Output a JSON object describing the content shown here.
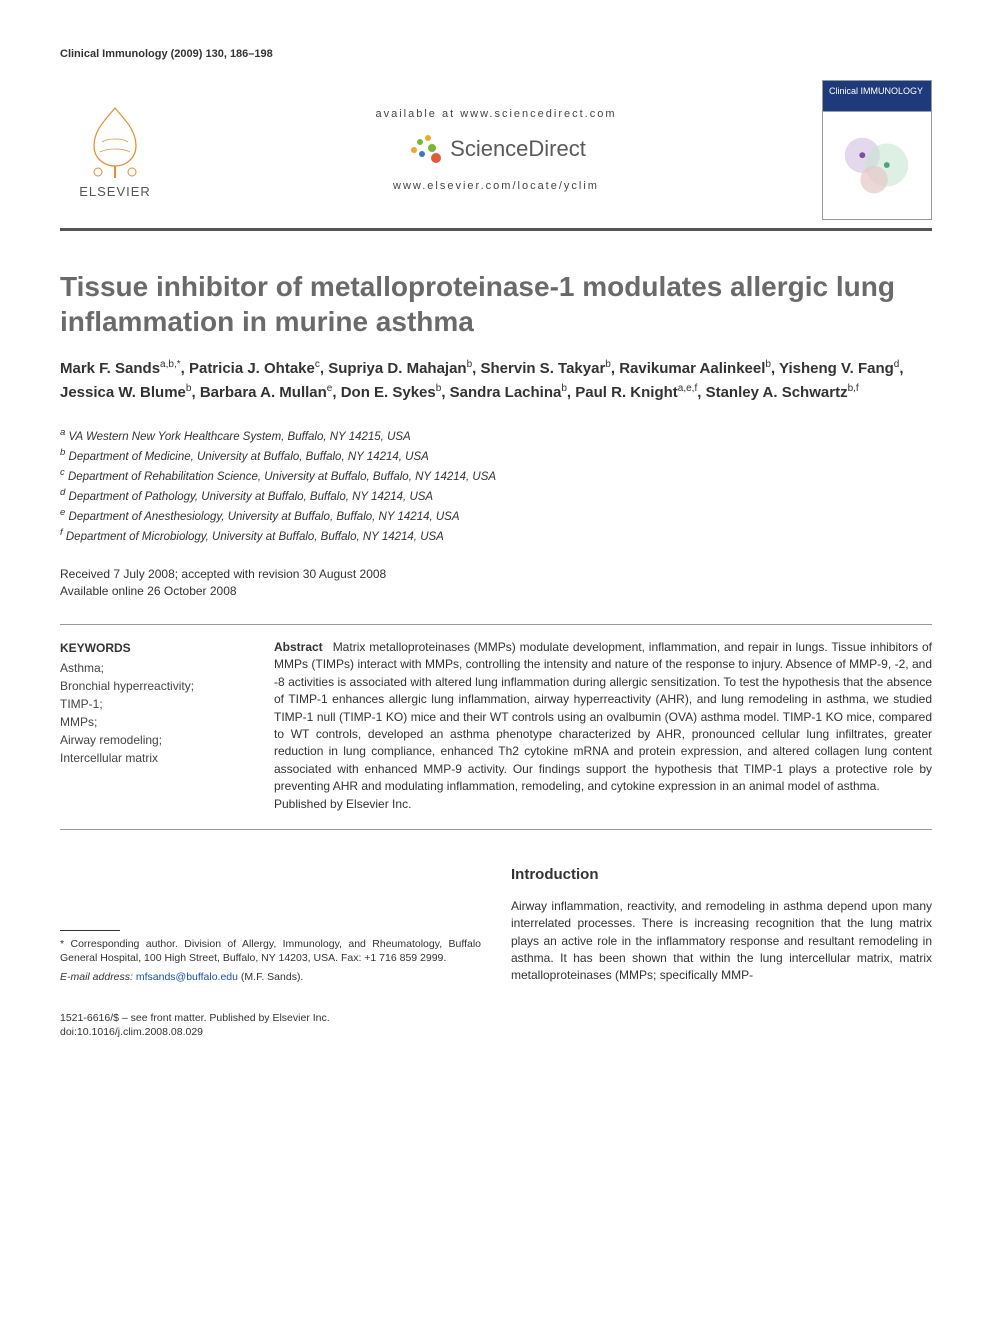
{
  "running_header": "Clinical Immunology (2009) 130, 186–198",
  "masthead": {
    "publisher_name": "ELSEVIER",
    "available_line": "available at www.sciencedirect.com",
    "sd_name": "ScienceDirect",
    "locate_line": "www.elsevier.com/locate/yclim",
    "cover_journal_title": "Clinical IMMUNOLOGY",
    "sd_mark_colors": [
      "#f5a623",
      "#7ab833",
      "#3b78c4",
      "#e25b3a"
    ]
  },
  "article": {
    "title": "Tissue inhibitor of metalloproteinase-1 modulates allergic lung inflammation in murine asthma",
    "title_color": "#6a6a6a",
    "title_fontsize": 28,
    "authors": [
      {
        "name": "Mark F. Sands",
        "marks": "a,b,*"
      },
      {
        "name": "Patricia J. Ohtake",
        "marks": "c"
      },
      {
        "name": "Supriya D. Mahajan",
        "marks": "b"
      },
      {
        "name": "Shervin S. Takyar",
        "marks": "b"
      },
      {
        "name": "Ravikumar Aalinkeel",
        "marks": "b"
      },
      {
        "name": "Yisheng V. Fang",
        "marks": "d"
      },
      {
        "name": "Jessica W. Blume",
        "marks": "b"
      },
      {
        "name": "Barbara A. Mullan",
        "marks": "e"
      },
      {
        "name": "Don E. Sykes",
        "marks": "b"
      },
      {
        "name": "Sandra Lachina",
        "marks": "b"
      },
      {
        "name": "Paul R. Knight",
        "marks": "a,e,f"
      },
      {
        "name": "Stanley A. Schwartz",
        "marks": "b,f"
      }
    ],
    "affiliations": [
      {
        "key": "a",
        "text": "VA Western New York Healthcare System, Buffalo, NY 14215, USA"
      },
      {
        "key": "b",
        "text": "Department of Medicine, University at Buffalo, Buffalo, NY 14214, USA"
      },
      {
        "key": "c",
        "text": "Department of Rehabilitation Science, University at Buffalo, Buffalo, NY 14214, USA"
      },
      {
        "key": "d",
        "text": "Department of Pathology, University at Buffalo, Buffalo, NY 14214, USA"
      },
      {
        "key": "e",
        "text": "Department of Anesthesiology, University at Buffalo, Buffalo, NY 14214, USA"
      },
      {
        "key": "f",
        "text": "Department of Microbiology, University at Buffalo, Buffalo, NY 14214, USA"
      }
    ],
    "dates_line1": "Received 7 July 2008; accepted with revision 30 August 2008",
    "dates_line2": "Available online 26 October 2008"
  },
  "keywords": {
    "heading": "KEYWORDS",
    "items": [
      "Asthma;",
      "Bronchial hyperreactivity;",
      "TIMP-1;",
      "MMPs;",
      "Airway remodeling;",
      "Intercellular matrix"
    ]
  },
  "abstract": {
    "label": "Abstract",
    "text": "Matrix metalloproteinases (MMPs) modulate development, inflammation, and repair in lungs. Tissue inhibitors of MMPs (TIMPs) interact with MMPs, controlling the intensity and nature of the response to injury. Absence of MMP-9, -2, and -8 activities is associated with altered lung inflammation during allergic sensitization. To test the hypothesis that the absence of TIMP-1 enhances allergic lung inflammation, airway hyperreactivity (AHR), and lung remodeling in asthma, we studied TIMP-1 null (TIMP-1 KO) mice and their WT controls using an ovalbumin (OVA) asthma model. TIMP-1 KO mice, compared to WT controls, developed an asthma phenotype characterized by AHR, pronounced cellular lung infiltrates, greater reduction in lung compliance, enhanced Th2 cytokine mRNA and protein expression, and altered collagen lung content associated with enhanced MMP-9 activity. Our findings support the hypothesis that TIMP-1 plays a protective role by preventing AHR and modulating inflammation, remodeling, and cytokine expression in an animal model of asthma.",
    "publisher_line": "Published by Elsevier Inc."
  },
  "introduction": {
    "heading": "Introduction",
    "body": "Airway inflammation, reactivity, and remodeling in asthma depend upon many interrelated processes. There is increasing recognition that the lung matrix plays an active role in the inflammatory response and resultant remodeling in asthma. It has been shown that within the lung intercellular matrix, matrix metalloproteinases (MMPs; specifically MMP-"
  },
  "corresponding": {
    "star": "*",
    "text": "Corresponding author. Division of Allergy, Immunology, and Rheumatology, Buffalo General Hospital, 100 High Street, Buffalo, NY 14203, USA. Fax: +1 716 859 2999.",
    "email_label": "E-mail address:",
    "email": "mfsands@buffalo.edu",
    "email_suffix": "(M.F. Sands)."
  },
  "footer": {
    "line1": "1521-6616/$ – see front matter. Published by Elsevier Inc.",
    "line2": "doi:10.1016/j.clim.2008.08.029"
  },
  "colors": {
    "rule": "#555555",
    "text": "#333333",
    "title_grey": "#6a6a6a",
    "link_blue": "#1a4fa3",
    "cover_blue": "#1f3a7a"
  }
}
